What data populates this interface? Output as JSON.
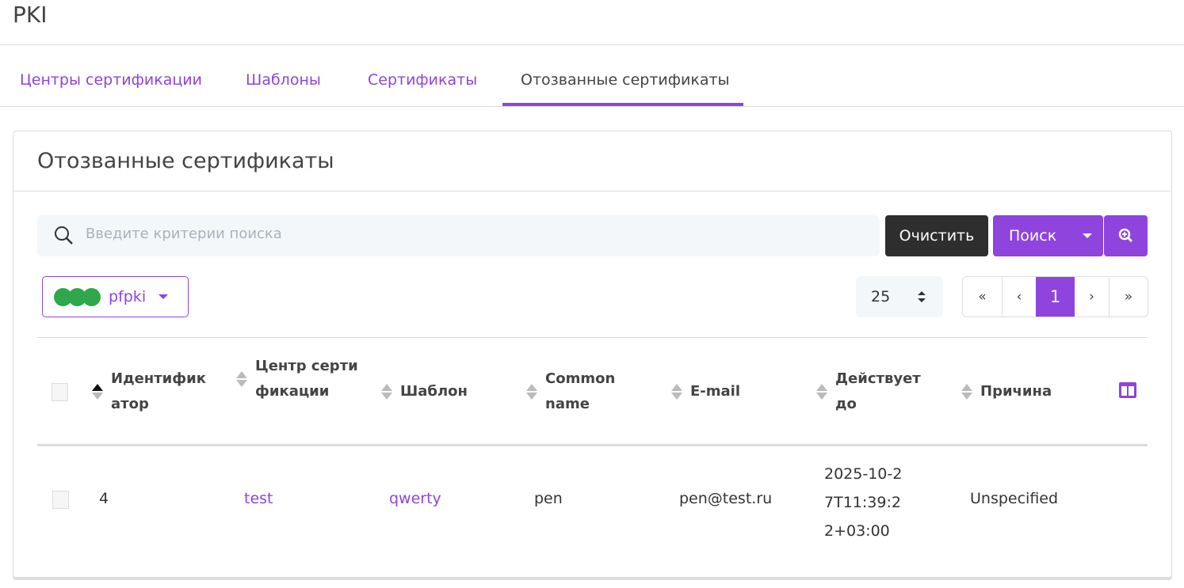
{
  "app": {
    "title": "PKI"
  },
  "tabs": [
    {
      "label": "Центры сертификации"
    },
    {
      "label": "Шаблоны"
    },
    {
      "label": "Сертификаты"
    },
    {
      "label": "Отозванные сертификаты",
      "active": true
    }
  ],
  "card": {
    "title": "Отозванные сертификаты"
  },
  "search": {
    "placeholder": "Введите критерии поиска",
    "value": "",
    "clear_label": "Очистить",
    "search_label": "Поиск"
  },
  "tenant": {
    "label": "pfpki"
  },
  "pagination": {
    "per_page": "25",
    "first": "«",
    "prev": "‹",
    "current": "1",
    "next": "›",
    "last": "»"
  },
  "table": {
    "columns": [
      "Идентификатор",
      "Центр сертификации",
      "Шаблон",
      "Common name",
      "E-mail",
      "Действует до",
      "Причина"
    ],
    "sort": {
      "column": "Идентификатор",
      "direction": "asc"
    },
    "rows": [
      {
        "id": "4",
        "ca": "test",
        "template": "qwerty",
        "cn": "pen",
        "email": "pen@test.ru",
        "valid_until": "2025-10-27T11:39:22+03:00",
        "reason": "Unspecified"
      }
    ]
  },
  "colors": {
    "accent": "#8e44dd",
    "dark_button": "#2e2e2e",
    "status_green": "#2ea84a"
  }
}
